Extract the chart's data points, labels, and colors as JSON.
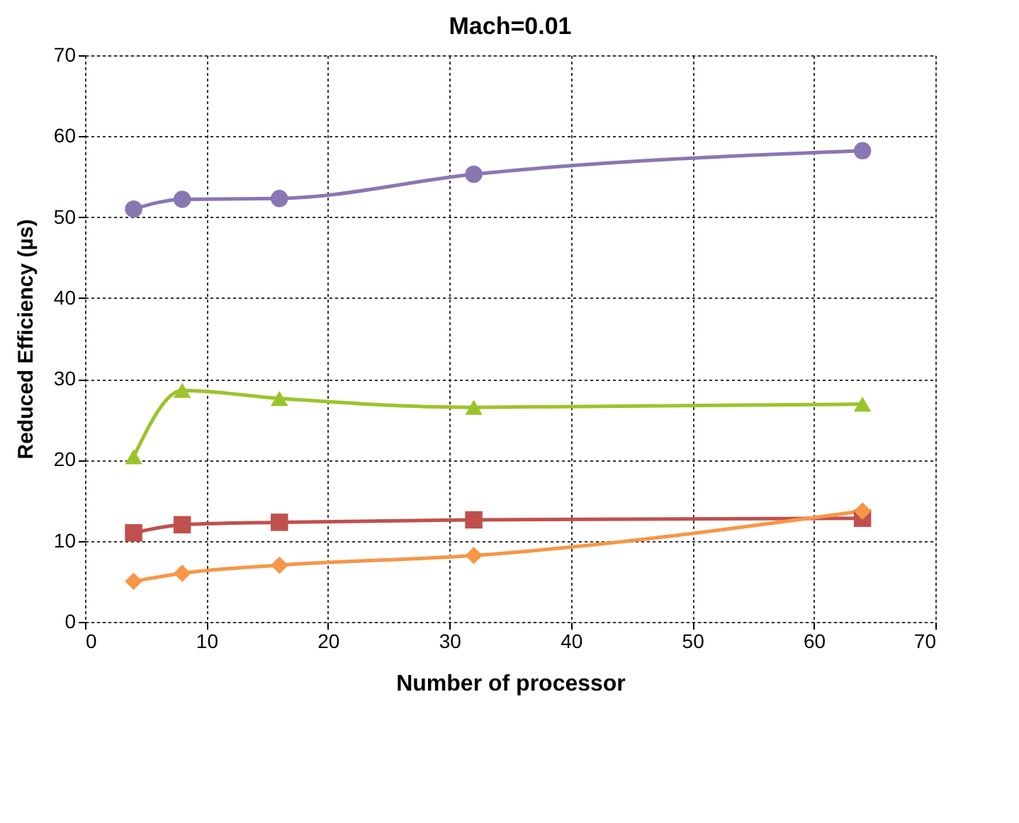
{
  "chart_data": {
    "type": "line",
    "title": "Mach=0.01",
    "xlabel": "Number of processor",
    "ylabel": "Reduced Efficiency (µs)",
    "x": [
      4,
      8,
      16,
      32,
      64
    ],
    "series": [
      {
        "color": "#8877b3",
        "marker": "circle",
        "values": [
          51,
          52.2,
          52.3,
          55.3,
          58.2
        ]
      },
      {
        "color": "#9bc42a",
        "marker": "triangle",
        "values": [
          20.4,
          28.6,
          27.6,
          26.5,
          26.9
        ]
      },
      {
        "color": "#c0504d",
        "marker": "square",
        "values": [
          11,
          12,
          12.3,
          12.6,
          12.8
        ]
      },
      {
        "color": "#f79646",
        "marker": "diamond",
        "values": [
          5,
          6,
          7,
          8.2,
          13.7
        ]
      }
    ],
    "xlim": [
      0,
      70
    ],
    "xticks": [
      0,
      10,
      20,
      30,
      40,
      50,
      60,
      70
    ],
    "ylim": [
      0,
      70
    ],
    "yticks": [
      0,
      10,
      20,
      30,
      40,
      50,
      60,
      70
    ],
    "grid": true,
    "legend": false,
    "line_style": "solid"
  }
}
